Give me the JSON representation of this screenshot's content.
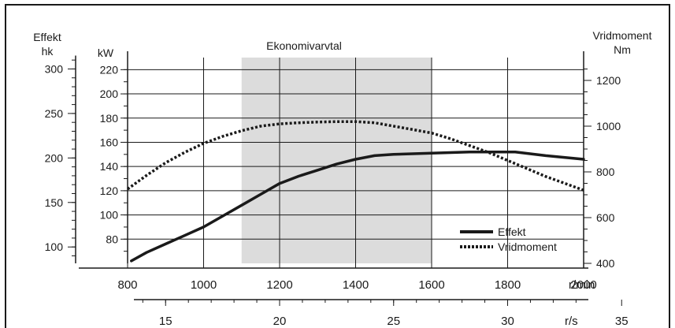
{
  "chart_data": {
    "type": "line",
    "title": "Ekonomivarvtal",
    "economy_band": {
      "label": "Ekonomivarvtal",
      "x_range": [
        1100,
        1600
      ],
      "color": "#dcdcdc"
    },
    "x_axis": {
      "unit_label": "r/min",
      "range": [
        800,
        2000
      ],
      "ticks": [
        "800",
        "1000",
        "1200",
        "1400",
        "1600",
        "1800",
        "2000"
      ],
      "tick_values": [
        800,
        1000,
        1200,
        1400,
        1600,
        1800,
        2000
      ]
    },
    "x2_axis": {
      "unit_label": "r/s",
      "ticks": [
        "15",
        "20",
        "25",
        "30",
        "35"
      ],
      "tick_values": [
        15,
        20,
        25,
        30,
        35
      ]
    },
    "y_left_hk": {
      "label_line1": "Effekt",
      "label_line2": "hk",
      "ticks": [
        "300",
        "250",
        "200",
        "150",
        "100"
      ],
      "tick_values": [
        300,
        250,
        200,
        150,
        100
      ]
    },
    "y_left_kw": {
      "label": "kW",
      "range": [
        60,
        230
      ],
      "ticks": [
        "220",
        "200",
        "180",
        "160",
        "140",
        "120",
        "100",
        "80"
      ],
      "tick_values": [
        220,
        200,
        180,
        160,
        140,
        120,
        100,
        80
      ]
    },
    "y_right": {
      "label_line1": "Vridmoment",
      "label_line2": "Nm",
      "range": [
        400,
        1300
      ],
      "ticks": [
        "1200",
        "1000",
        "800",
        "600",
        "400"
      ],
      "tick_values": [
        1200,
        1000,
        800,
        600,
        400
      ]
    },
    "grid": true,
    "legend_position": "bottom-right",
    "series": [
      {
        "name": "Effekt",
        "axis": "kW",
        "style": "solid",
        "color": "#1a1a1a",
        "x": [
          810,
          850,
          900,
          950,
          1000,
          1050,
          1100,
          1150,
          1200,
          1250,
          1300,
          1350,
          1400,
          1450,
          1500,
          1600,
          1700,
          1800,
          1820,
          1900,
          2000
        ],
        "y": [
          62,
          69,
          76,
          83,
          90,
          99,
          108,
          117,
          126,
          132,
          137,
          142,
          146,
          149,
          150,
          151,
          152,
          152,
          152,
          149,
          146
        ]
      },
      {
        "name": "Vridmoment",
        "axis": "Nm",
        "style": "dotted",
        "color": "#1a1a1a",
        "x": [
          800,
          850,
          900,
          950,
          1000,
          1050,
          1100,
          1150,
          1200,
          1250,
          1300,
          1350,
          1400,
          1450,
          1500,
          1550,
          1600,
          1650,
          1700,
          1750,
          1800,
          1850,
          1900,
          1950,
          2000
        ],
        "y": [
          725,
          785,
          840,
          885,
          925,
          955,
          980,
          1000,
          1010,
          1015,
          1018,
          1020,
          1020,
          1015,
          1000,
          985,
          970,
          945,
          915,
          885,
          850,
          815,
          780,
          750,
          720
        ]
      }
    ]
  }
}
